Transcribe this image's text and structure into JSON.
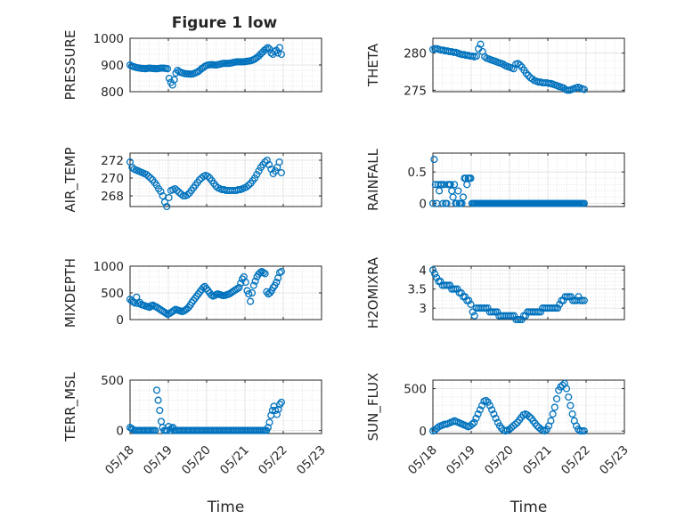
{
  "figure": {
    "title": "Figure 1 low",
    "series_color": "#0072BD"
  },
  "chart_data": [
    {
      "type": "scatter",
      "ylabel": "PRESSURE",
      "xlabel": "",
      "x_ticks": [],
      "ylim": [
        800,
        1000
      ],
      "y_ticks": [
        800,
        900,
        1000
      ],
      "y_values": [
        900,
        896,
        894,
        892,
        890,
        889,
        888,
        887,
        887,
        886,
        887,
        888,
        888,
        887,
        887,
        886,
        886,
        887,
        888,
        888,
        888,
        887,
        886,
        850,
        835,
        825,
        845,
        870,
        880,
        875,
        872,
        870,
        868,
        867,
        867,
        866,
        866,
        867,
        869,
        872,
        875,
        880,
        886,
        890,
        895,
        898,
        900,
        901,
        901,
        901,
        900,
        900,
        902,
        903,
        905,
        906,
        906,
        906,
        906,
        907,
        908,
        910,
        911,
        912,
        912,
        912,
        912,
        912,
        913,
        914,
        915,
        916,
        918,
        921,
        925,
        930,
        935,
        942,
        948,
        955,
        960,
        965,
        960,
        945,
        940,
        950,
        955,
        945,
        965,
        940
      ]
    },
    {
      "type": "scatter",
      "ylabel": "THETA",
      "xlabel": "",
      "x_ticks": [],
      "ylim": [
        274.8,
        282
      ],
      "y_ticks": [
        275,
        280
      ],
      "y_values": [
        280.5,
        280.6,
        280.6,
        280.5,
        280.4,
        280.4,
        280.3,
        280.3,
        280.2,
        280.2,
        280.1,
        280.1,
        280,
        279.9,
        279.8,
        279.8,
        279.7,
        279.7,
        279.6,
        279.6,
        279.5,
        279.6,
        280.6,
        281.2,
        280.2,
        279.5,
        279.3,
        279.2,
        279.1,
        279.0,
        278.9,
        278.8,
        278.7,
        278.6,
        278.5,
        278.3,
        278.2,
        278.1,
        278.0,
        277.9,
        278.5,
        278.6,
        278.4,
        278.1,
        277.7,
        277.3,
        277.0,
        276.7,
        276.5,
        276.3,
        276.2,
        276.1,
        276.1,
        276.0,
        276.0,
        276.0,
        275.9,
        275.9,
        275.8,
        275.7,
        275.6,
        275.5,
        275.4,
        275.3,
        275.1,
        275.0,
        275.0,
        275.1,
        275.2,
        275.3,
        275.4,
        275.3,
        275.2,
        275.1
      ]
    },
    {
      "type": "scatter",
      "ylabel": "AIR_TEMP",
      "xlabel": "",
      "x_ticks": [],
      "ylim": [
        266.8,
        272.8
      ],
      "y_ticks": [
        268,
        270,
        272
      ],
      "y_values": [
        271.8,
        271.2,
        271,
        270.9,
        270.8,
        270.7,
        270.6,
        270.5,
        270.4,
        270.2,
        270,
        269.8,
        269.5,
        269.2,
        268.8,
        268.5,
        268,
        267.3,
        266.8,
        267.8,
        268.6,
        268.7,
        268.8,
        268.6,
        268.4,
        268.2,
        268.0,
        268.0,
        268.1,
        268.3,
        268.6,
        268.9,
        269.2,
        269.5,
        269.8,
        270.0,
        270.2,
        270.3,
        270.2,
        270.0,
        269.7,
        269.4,
        269.1,
        268.9,
        268.8,
        268.7,
        268.7,
        268.6,
        268.6,
        268.6,
        268.6,
        268.6,
        268.6,
        268.7,
        268.7,
        268.8,
        268.9,
        269.0,
        269.2,
        269.4,
        269.7,
        270.0,
        270.4,
        270.8,
        271.2,
        271.5,
        271.8,
        272.0,
        271.5,
        271.0,
        270.5,
        270.8,
        271.2,
        271.8,
        270.6
      ]
    },
    {
      "type": "scatter",
      "ylabel": "RAINFALL",
      "xlabel": "",
      "x_ticks": [],
      "ylim": [
        -0.05,
        0.8
      ],
      "y_ticks": [
        0,
        0.5
      ],
      "y_values": [
        0,
        0.7,
        0.3,
        0,
        0.3,
        0.2,
        0.3,
        0.3,
        0,
        0.3,
        0,
        0,
        0.3,
        0.3,
        0.3,
        0.2,
        0.1,
        0.3,
        0,
        0,
        0.2,
        0,
        0,
        0,
        0.1,
        0.4,
        0.4,
        0.3,
        0.4,
        0.4,
        0.4,
        0,
        0,
        0,
        0,
        0,
        0,
        0,
        0,
        0,
        0,
        0,
        0,
        0,
        0,
        0,
        0,
        0,
        0,
        0,
        0,
        0,
        0,
        0,
        0,
        0,
        0,
        0,
        0,
        0,
        0,
        0,
        0,
        0,
        0,
        0,
        0,
        0,
        0,
        0,
        0,
        0,
        0,
        0,
        0,
        0,
        0,
        0,
        0,
        0,
        0,
        0,
        0,
        0,
        0,
        0,
        0,
        0,
        0,
        0,
        0,
        0,
        0,
        0,
        0,
        0,
        0,
        0,
        0,
        0,
        0,
        0,
        0,
        0,
        0,
        0,
        0,
        0,
        0,
        0,
        0,
        0,
        0,
        0,
        0,
        0,
        0,
        0,
        0,
        0,
        0
      ]
    },
    {
      "type": "scatter",
      "ylabel": "MIXDEPTH",
      "xlabel": "",
      "x_ticks": [],
      "ylim": [
        0,
        1000
      ],
      "y_ticks": [
        0,
        500,
        1000
      ],
      "y_values": [
        380,
        350,
        330,
        310,
        420,
        300,
        320,
        280,
        270,
        260,
        250,
        240,
        230,
        260,
        270,
        250,
        240,
        220,
        200,
        180,
        160,
        140,
        120,
        100,
        110,
        130,
        150,
        170,
        190,
        180,
        170,
        160,
        150,
        160,
        180,
        200,
        230,
        270,
        320,
        360,
        400,
        440,
        480,
        520,
        560,
        600,
        620,
        580,
        540,
        500,
        460,
        440,
        450,
        470,
        480,
        470,
        460,
        450,
        450,
        460,
        470,
        480,
        500,
        520,
        540,
        560,
        580,
        600,
        680,
        760,
        800,
        700,
        540,
        480,
        340,
        500,
        640,
        720,
        800,
        850,
        880,
        900,
        880,
        860,
        520,
        480,
        500,
        540,
        600,
        640,
        700,
        780,
        880,
        900
      ]
    },
    {
      "type": "scatter",
      "ylabel": "H2OMIXRA",
      "xlabel": "",
      "x_ticks": [],
      "ylim": [
        2.7,
        4.1
      ],
      "y_ticks": [
        3,
        3.5,
        4
      ],
      "y_values": [
        4.0,
        3.9,
        3.8,
        3.7,
        3.7,
        3.6,
        3.6,
        3.6,
        3.6,
        3.6,
        3.5,
        3.5,
        3.5,
        3.5,
        3.4,
        3.4,
        3.3,
        3.3,
        3.2,
        3.2,
        3.1,
        2.9,
        2.8,
        3.0,
        3.0,
        3.0,
        3.0,
        3.0,
        3.0,
        3.0,
        2.9,
        2.9,
        2.9,
        2.9,
        2.9,
        2.8,
        2.8,
        2.8,
        2.8,
        2.8,
        2.8,
        2.8,
        2.8,
        2.8,
        2.7,
        2.7,
        2.7,
        2.7,
        2.8,
        2.8,
        2.9,
        2.9,
        2.9,
        2.9,
        2.9,
        2.9,
        2.9,
        2.9,
        3.0,
        3.0,
        3.0,
        3.0,
        3.0,
        3.0,
        3.0,
        3.0,
        3.0,
        3.1,
        3.2,
        3.2,
        3.3,
        3.3,
        3.3,
        3.3,
        3.2,
        3.2,
        3.2,
        3.3,
        3.2,
        3.2,
        3.2
      ]
    },
    {
      "type": "scatter",
      "ylabel": "TERR_MSL",
      "xlabel": "Time",
      "x_ticks": [
        "05/18",
        "05/19",
        "05/20",
        "05/21",
        "05/22",
        "05/23"
      ],
      "ylim": [
        -30,
        500
      ],
      "y_ticks": [
        0,
        500
      ],
      "y_values": [
        30,
        20,
        10,
        0,
        0,
        0,
        0,
        0,
        0,
        0,
        0,
        0,
        0,
        0,
        0,
        0,
        0,
        0,
        400,
        300,
        200,
        90,
        30,
        0,
        0,
        0,
        40,
        0,
        20,
        30,
        0,
        0,
        0,
        0,
        0,
        0,
        0,
        0,
        0,
        0,
        0,
        0,
        0,
        0,
        0,
        0,
        0,
        0,
        0,
        0,
        0,
        0,
        0,
        0,
        0,
        0,
        0,
        0,
        0,
        0,
        0,
        0,
        0,
        0,
        0,
        0,
        0,
        0,
        0,
        0,
        0,
        0,
        0,
        0,
        0,
        0,
        0,
        0,
        0,
        0,
        0,
        0,
        0,
        0,
        0,
        0,
        0,
        0,
        0,
        0,
        0,
        0,
        0,
        30,
        80,
        150,
        200,
        240,
        200,
        160,
        210,
        260,
        280
      ]
    },
    {
      "type": "scatter",
      "ylabel": "SUN_FLUX",
      "xlabel": "Time",
      "x_ticks": [
        "05/18",
        "05/19",
        "05/20",
        "05/21",
        "05/22",
        "05/23"
      ],
      "ylim": [
        -30,
        600
      ],
      "y_ticks": [
        0,
        500
      ],
      "y_values": [
        0,
        10,
        30,
        50,
        60,
        70,
        80,
        80,
        90,
        100,
        110,
        120,
        110,
        100,
        90,
        80,
        70,
        60,
        50,
        60,
        80,
        100,
        150,
        200,
        250,
        300,
        350,
        360,
        340,
        300,
        250,
        200,
        150,
        100,
        60,
        30,
        10,
        0,
        10,
        20,
        40,
        60,
        80,
        100,
        130,
        160,
        190,
        200,
        190,
        170,
        150,
        120,
        90,
        60,
        40,
        20,
        10,
        0,
        20,
        60,
        120,
        200,
        280,
        380,
        480,
        520,
        540,
        560,
        500,
        400,
        300,
        200,
        120,
        60,
        20,
        0,
        0,
        0
      ]
    }
  ]
}
